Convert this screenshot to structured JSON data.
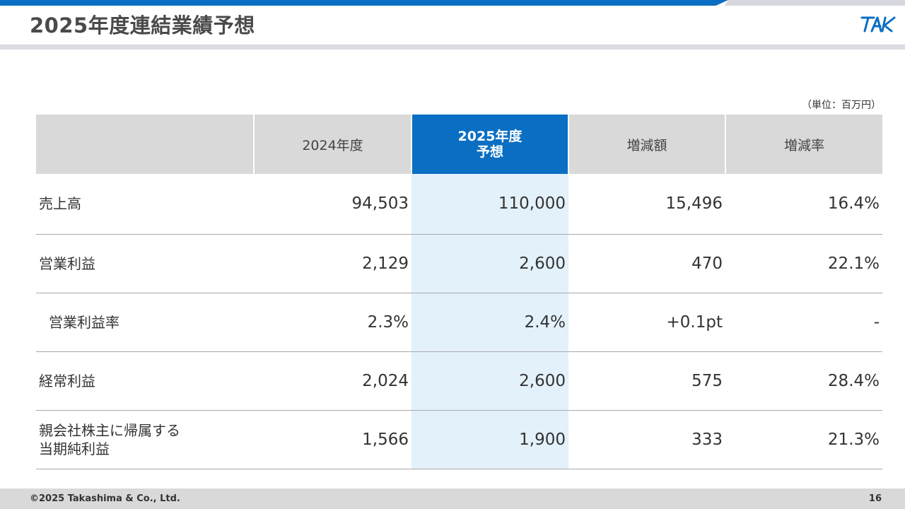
{
  "header": {
    "title": "2025年度連結業績予想",
    "logo_text": "TAK"
  },
  "unit_note": "（単位：百万円）",
  "table": {
    "columns": [
      "",
      "2024年度",
      "2025年度",
      "予想",
      "増減額",
      "増減率"
    ],
    "headers": {
      "prev_year": "2024年度",
      "forecast_line1": "2025年度",
      "forecast_line2": "予想",
      "change_amount": "増減額",
      "change_rate": "増減率"
    },
    "rows": [
      {
        "label": "売上高",
        "label2": "",
        "fy2024": "94,503",
        "fy2025": "110,000",
        "diff": "15,496",
        "rate": "16.4%"
      },
      {
        "label": "営業利益",
        "label2": "",
        "fy2024": "2,129",
        "fy2025": "2,600",
        "diff": "470",
        "rate": "22.1%"
      },
      {
        "label": "営業利益率",
        "label2": "",
        "fy2024": "2.3%",
        "fy2025": "2.4%",
        "diff": "+0.1pt",
        "rate": "-"
      },
      {
        "label": "経常利益",
        "label2": "",
        "fy2024": "2,024",
        "fy2025": "2,600",
        "diff": "575",
        "rate": "28.4%"
      },
      {
        "label": "親会社株主に帰属する",
        "label2": "当期純利益",
        "fy2024": "1,566",
        "fy2025": "1,900",
        "diff": "333",
        "rate": "21.3%"
      }
    ]
  },
  "footer": {
    "copyright": "©2025 Takashima & Co., Ltd.",
    "page_number": "16"
  },
  "colors": {
    "accent": "#0a6fc2",
    "highlight_column": "#e3f1fb",
    "header_gray": "#d9d9d9"
  }
}
